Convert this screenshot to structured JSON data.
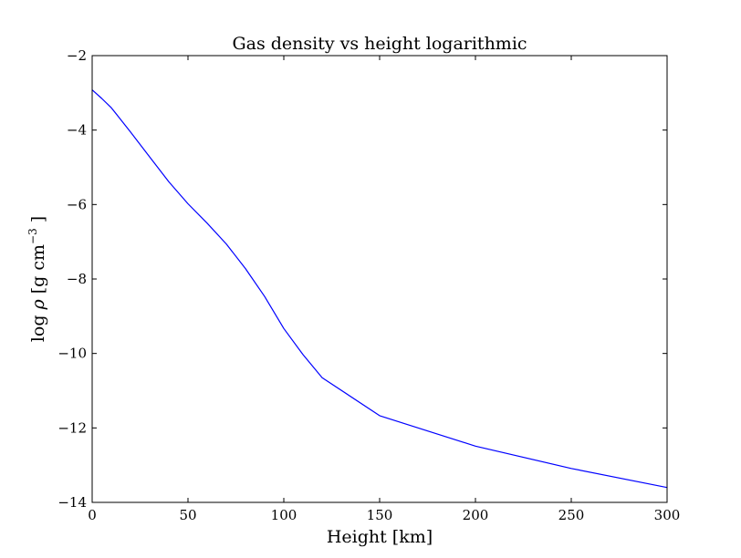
{
  "chart_data": {
    "type": "line",
    "title": "Gas density vs height logarithmic",
    "xlabel": "Height [km]",
    "ylabel": {
      "prefix": "log ",
      "symbol": "ρ",
      "units_open": " [g cm",
      "exponent": "−3",
      "units_close": " ]"
    },
    "xlim": [
      0,
      300
    ],
    "ylim": [
      -14,
      -2
    ],
    "xticks": [
      0,
      50,
      100,
      150,
      200,
      250,
      300
    ],
    "yticks": [
      -14,
      -12,
      -10,
      -8,
      -6,
      -4,
      -2
    ],
    "xtick_labels": [
      "0",
      "50",
      "100",
      "150",
      "200",
      "250",
      "300"
    ],
    "ytick_labels": [
      "−14",
      "−12",
      "−10",
      "−8",
      "−6",
      "−4",
      "−2"
    ],
    "grid": false,
    "series": [
      {
        "color": "#0000ff",
        "x": [
          0,
          5,
          10,
          20,
          30,
          40,
          50,
          60,
          70,
          80,
          90,
          100,
          110,
          120,
          150,
          200,
          250,
          300
        ],
        "y": [
          -2.92,
          -3.15,
          -3.4,
          -4.05,
          -4.72,
          -5.39,
          -5.98,
          -6.5,
          -7.06,
          -7.72,
          -8.47,
          -9.33,
          -10.03,
          -10.65,
          -11.67,
          -12.49,
          -13.09,
          -13.6
        ]
      }
    ]
  }
}
